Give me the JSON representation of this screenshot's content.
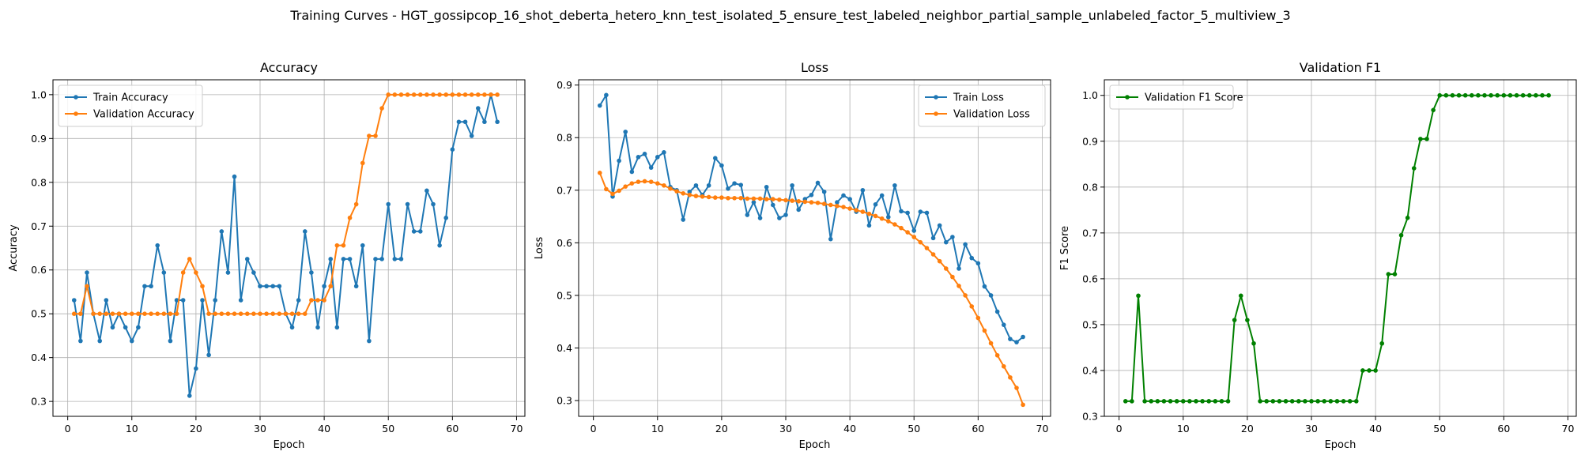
{
  "figure": {
    "suptitle": "Training Curves - HGT_gossipcop_16_shot_deberta_hetero_knn_test_isolated_5_ensure_test_labeled_neighbor_partial_sample_unlabeled_factor_5_multiview_3"
  },
  "colors": {
    "blue": "#1f77b4",
    "orange": "#ff7f0e",
    "green": "#008000"
  },
  "chart_data": [
    {
      "type": "line",
      "title": "Accuracy",
      "xlabel": "Epoch",
      "ylabel": "Accuracy",
      "xlim": [
        -2.3,
        71.3
      ],
      "ylim": [
        0.266,
        1.034
      ],
      "xticks": [
        0,
        10,
        20,
        30,
        40,
        50,
        60,
        70
      ],
      "yticks": [
        0.3,
        0.4,
        0.5,
        0.6,
        0.7,
        0.8,
        0.9,
        1.0
      ],
      "ytick_labels": [
        "0.3",
        "0.4",
        "0.5",
        "0.6",
        "0.7",
        "0.8",
        "0.9",
        "1.0"
      ],
      "grid": true,
      "legend": "top-left",
      "series": [
        {
          "name": "Train Accuracy",
          "color": "#1f77b4",
          "values": [
            0.531,
            0.438,
            0.594,
            0.5,
            0.438,
            0.531,
            0.469,
            0.5,
            0.469,
            0.438,
            0.469,
            0.563,
            0.563,
            0.656,
            0.594,
            0.438,
            0.531,
            0.531,
            0.313,
            0.375,
            0.531,
            0.406,
            0.531,
            0.688,
            0.594,
            0.813,
            0.531,
            0.625,
            0.594,
            0.563,
            0.563,
            0.563,
            0.563,
            0.5,
            0.469,
            0.531,
            0.688,
            0.594,
            0.469,
            0.563,
            0.625,
            0.469,
            0.625,
            0.625,
            0.563,
            0.656,
            0.438,
            0.625,
            0.625,
            0.75,
            0.625,
            0.625,
            0.75,
            0.688,
            0.688,
            0.781,
            0.75,
            0.656,
            0.719,
            0.875,
            0.938,
            0.938,
            0.906,
            0.969,
            0.938,
            1.0,
            0.938
          ]
        },
        {
          "name": "Validation Accuracy",
          "color": "#ff7f0e",
          "values": [
            0.5,
            0.5,
            0.563,
            0.5,
            0.5,
            0.5,
            0.5,
            0.5,
            0.5,
            0.5,
            0.5,
            0.5,
            0.5,
            0.5,
            0.5,
            0.5,
            0.5,
            0.594,
            0.625,
            0.594,
            0.563,
            0.5,
            0.5,
            0.5,
            0.5,
            0.5,
            0.5,
            0.5,
            0.5,
            0.5,
            0.5,
            0.5,
            0.5,
            0.5,
            0.5,
            0.5,
            0.5,
            0.531,
            0.531,
            0.531,
            0.563,
            0.656,
            0.656,
            0.719,
            0.75,
            0.844,
            0.906,
            0.906,
            0.969,
            1.0,
            1.0,
            1.0,
            1.0,
            1.0,
            1.0,
            1.0,
            1.0,
            1.0,
            1.0,
            1.0,
            1.0,
            1.0,
            1.0,
            1.0,
            1.0,
            1.0,
            1.0
          ]
        }
      ]
    },
    {
      "type": "line",
      "title": "Loss",
      "xlabel": "Epoch",
      "ylabel": "Loss",
      "xlim": [
        -2.3,
        71.3
      ],
      "ylim": [
        0.27,
        0.91
      ],
      "xticks": [
        0,
        10,
        20,
        30,
        40,
        50,
        60,
        70
      ],
      "yticks": [
        0.3,
        0.4,
        0.5,
        0.6,
        0.7,
        0.8,
        0.9
      ],
      "ytick_labels": [
        "0.3",
        "0.4",
        "0.5",
        "0.6",
        "0.7",
        "0.8",
        "0.9"
      ],
      "grid": true,
      "legend": "top-right",
      "series": [
        {
          "name": "Train Loss",
          "color": "#1f77b4",
          "values": [
            0.861,
            0.881,
            0.688,
            0.756,
            0.811,
            0.735,
            0.763,
            0.769,
            0.743,
            0.763,
            0.772,
            0.706,
            0.7,
            0.644,
            0.697,
            0.709,
            0.691,
            0.709,
            0.761,
            0.747,
            0.703,
            0.713,
            0.71,
            0.653,
            0.677,
            0.647,
            0.706,
            0.672,
            0.647,
            0.653,
            0.709,
            0.663,
            0.683,
            0.691,
            0.714,
            0.697,
            0.607,
            0.677,
            0.69,
            0.683,
            0.659,
            0.7,
            0.633,
            0.673,
            0.69,
            0.649,
            0.709,
            0.66,
            0.657,
            0.623,
            0.659,
            0.657,
            0.609,
            0.633,
            0.601,
            0.611,
            0.551,
            0.597,
            0.571,
            0.561,
            0.517,
            0.5,
            0.469,
            0.444,
            0.417,
            0.411,
            0.421
          ]
        },
        {
          "name": "Validation Loss",
          "color": "#ff7f0e",
          "values": [
            0.733,
            0.702,
            0.693,
            0.699,
            0.707,
            0.713,
            0.716,
            0.717,
            0.716,
            0.713,
            0.709,
            0.703,
            0.698,
            0.694,
            0.691,
            0.689,
            0.688,
            0.687,
            0.686,
            0.686,
            0.685,
            0.685,
            0.685,
            0.684,
            0.684,
            0.684,
            0.683,
            0.683,
            0.682,
            0.681,
            0.68,
            0.679,
            0.678,
            0.677,
            0.676,
            0.674,
            0.672,
            0.67,
            0.668,
            0.665,
            0.662,
            0.659,
            0.655,
            0.651,
            0.646,
            0.641,
            0.635,
            0.628,
            0.62,
            0.611,
            0.601,
            0.59,
            0.578,
            0.565,
            0.551,
            0.535,
            0.518,
            0.5,
            0.479,
            0.457,
            0.433,
            0.409,
            0.386,
            0.365,
            0.344,
            0.324,
            0.292
          ]
        }
      ]
    },
    {
      "type": "line",
      "title": "Validation F1",
      "xlabel": "Epoch",
      "ylabel": "F1 Score",
      "xlim": [
        -2.3,
        71.3
      ],
      "ylim": [
        0.3,
        1.034
      ],
      "xticks": [
        0,
        10,
        20,
        30,
        40,
        50,
        60,
        70
      ],
      "yticks": [
        0.3,
        0.4,
        0.5,
        0.6,
        0.7,
        0.8,
        0.9,
        1.0
      ],
      "ytick_labels": [
        "0.3",
        "0.4",
        "0.5",
        "0.6",
        "0.7",
        "0.8",
        "0.9",
        "1.0"
      ],
      "grid": true,
      "legend": "top-left",
      "series": [
        {
          "name": "Validation F1 Score",
          "color": "#008000",
          "values": [
            0.333,
            0.333,
            0.563,
            0.333,
            0.333,
            0.333,
            0.333,
            0.333,
            0.333,
            0.333,
            0.333,
            0.333,
            0.333,
            0.333,
            0.333,
            0.333,
            0.333,
            0.51,
            0.563,
            0.51,
            0.459,
            0.333,
            0.333,
            0.333,
            0.333,
            0.333,
            0.333,
            0.333,
            0.333,
            0.333,
            0.333,
            0.333,
            0.333,
            0.333,
            0.333,
            0.333,
            0.333,
            0.4,
            0.4,
            0.4,
            0.459,
            0.61,
            0.61,
            0.695,
            0.733,
            0.841,
            0.905,
            0.905,
            0.968,
            1.0,
            1.0,
            1.0,
            1.0,
            1.0,
            1.0,
            1.0,
            1.0,
            1.0,
            1.0,
            1.0,
            1.0,
            1.0,
            1.0,
            1.0,
            1.0,
            1.0,
            1.0
          ]
        }
      ]
    }
  ]
}
